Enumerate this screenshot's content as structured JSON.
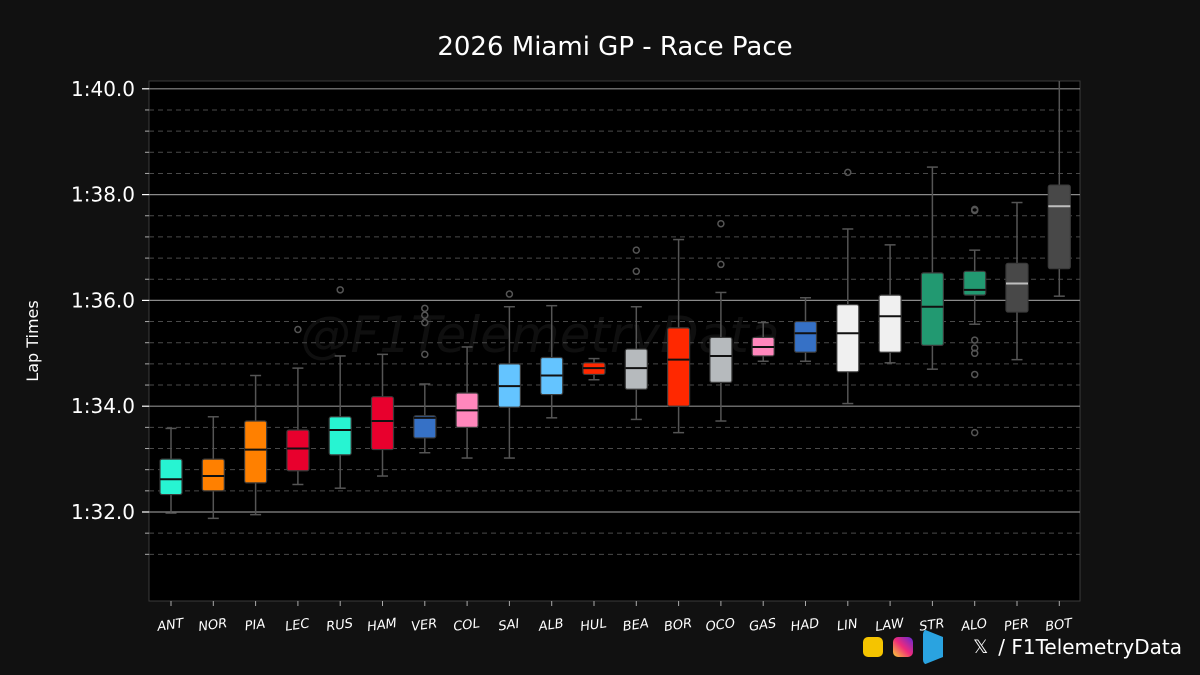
{
  "title": "2026 Miami GP - Race Pace",
  "ylabel": "Lap Times",
  "watermark": "@F1TelemetryData",
  "footer": {
    "x_glyph": "𝕏",
    "handle": "/ F1TelemetryData"
  },
  "chart_data": {
    "type": "box",
    "title": "2026 Miami GP - Race Pace",
    "ylabel": "Lap Times",
    "xlabel": "",
    "ylim": [
      90.6,
      100.2
    ],
    "yticks": [
      92,
      94,
      96,
      98,
      100
    ],
    "ytick_labels": [
      "1:32.0",
      "1:34.0",
      "1:36.0",
      "1:38.0",
      "1:40.0"
    ],
    "grid": true,
    "categories": [
      "ANT",
      "NOR",
      "PIA",
      "LEC",
      "RUS",
      "HAM",
      "VER",
      "COL",
      "SAI",
      "ALB",
      "HUL",
      "BEA",
      "BOR",
      "OCO",
      "GAS",
      "HAD",
      "LIN",
      "LAW",
      "STR",
      "ALO",
      "PER",
      "BOT"
    ],
    "boxes": [
      {
        "driver": "ANT",
        "color": "#27f4d2",
        "low": 91.98,
        "q1": 92.33,
        "median": 92.62,
        "q3": 93.0,
        "high": 93.58,
        "outliers": []
      },
      {
        "driver": "NOR",
        "color": "#ff8000",
        "low": 91.88,
        "q1": 92.4,
        "median": 92.68,
        "q3": 93.0,
        "high": 93.8,
        "outliers": []
      },
      {
        "driver": "PIA",
        "color": "#ff8000",
        "low": 91.95,
        "q1": 92.55,
        "median": 93.18,
        "q3": 93.72,
        "high": 94.58,
        "outliers": []
      },
      {
        "driver": "LEC",
        "color": "#e8002d",
        "low": 92.52,
        "q1": 92.78,
        "median": 93.2,
        "q3": 93.55,
        "high": 94.72,
        "outliers": [
          95.45
        ]
      },
      {
        "driver": "RUS",
        "color": "#27f4d2",
        "low": 92.45,
        "q1": 93.08,
        "median": 93.55,
        "q3": 93.8,
        "high": 94.95,
        "outliers": [
          96.2
        ]
      },
      {
        "driver": "HAM",
        "color": "#e8002d",
        "low": 92.68,
        "q1": 93.18,
        "median": 93.72,
        "q3": 94.18,
        "high": 94.98,
        "outliers": []
      },
      {
        "driver": "VER",
        "color": "#3671c6",
        "low": 93.12,
        "q1": 93.4,
        "median": 93.78,
        "q3": 93.82,
        "high": 94.42,
        "outliers": [
          94.98,
          95.58,
          95.72,
          95.85
        ]
      },
      {
        "driver": "COL",
        "color": "#ff87bc",
        "low": 93.02,
        "q1": 93.6,
        "median": 93.92,
        "q3": 94.25,
        "high": 95.12,
        "outliers": []
      },
      {
        "driver": "SAI",
        "color": "#64c4ff",
        "low": 93.02,
        "q1": 93.98,
        "median": 94.38,
        "q3": 94.8,
        "high": 95.88,
        "outliers": [
          96.12
        ]
      },
      {
        "driver": "ALB",
        "color": "#64c4ff",
        "low": 93.78,
        "q1": 94.22,
        "median": 94.58,
        "q3": 94.92,
        "high": 95.9,
        "outliers": []
      },
      {
        "driver": "HUL",
        "color": "#ff2800",
        "low": 94.5,
        "q1": 94.6,
        "median": 94.72,
        "q3": 94.82,
        "high": 94.9,
        "outliers": []
      },
      {
        "driver": "BEA",
        "color": "#b6babd",
        "low": 93.75,
        "q1": 94.32,
        "median": 94.72,
        "q3": 95.08,
        "high": 95.88,
        "outliers": [
          96.55,
          96.95
        ]
      },
      {
        "driver": "BOR",
        "color": "#ff2800",
        "low": 93.5,
        "q1": 94.0,
        "median": 94.88,
        "q3": 95.48,
        "high": 97.15,
        "outliers": []
      },
      {
        "driver": "OCO",
        "color": "#b6babd",
        "low": 93.72,
        "q1": 94.45,
        "median": 94.95,
        "q3": 95.3,
        "high": 96.15,
        "outliers": [
          96.68,
          97.45
        ]
      },
      {
        "driver": "GAS",
        "color": "#ff87bc",
        "low": 94.85,
        "q1": 94.95,
        "median": 95.12,
        "q3": 95.3,
        "high": 95.58,
        "outliers": []
      },
      {
        "driver": "HAD",
        "color": "#3671c6",
        "low": 94.85,
        "q1": 95.02,
        "median": 95.38,
        "q3": 95.6,
        "high": 96.05,
        "outliers": []
      },
      {
        "driver": "LIN",
        "color": "#f0f0f0",
        "low": 94.05,
        "q1": 94.65,
        "median": 95.38,
        "q3": 95.92,
        "high": 97.35,
        "outliers": [
          98.42
        ]
      },
      {
        "driver": "LAW",
        "color": "#f0f0f0",
        "low": 94.82,
        "q1": 95.02,
        "median": 95.7,
        "q3": 96.1,
        "high": 97.05,
        "outliers": []
      },
      {
        "driver": "STR",
        "color": "#229971",
        "low": 94.7,
        "q1": 95.15,
        "median": 95.88,
        "q3": 96.52,
        "high": 98.52,
        "outliers": []
      },
      {
        "driver": "ALO",
        "color": "#229971",
        "low": 95.55,
        "q1": 96.1,
        "median": 96.2,
        "q3": 96.55,
        "high": 96.95,
        "outliers": [
          93.5,
          94.6,
          95.0,
          95.1,
          95.25,
          97.7,
          97.72
        ]
      },
      {
        "driver": "PER",
        "color": "#484848",
        "low": 94.88,
        "q1": 95.78,
        "median": 96.32,
        "q3": 96.7,
        "high": 97.85,
        "outliers": []
      },
      {
        "driver": "BOT",
        "color": "#484848",
        "low": 96.08,
        "q1": 96.6,
        "median": 97.78,
        "q3": 98.18,
        "high": 100.2,
        "outliers": []
      }
    ]
  }
}
